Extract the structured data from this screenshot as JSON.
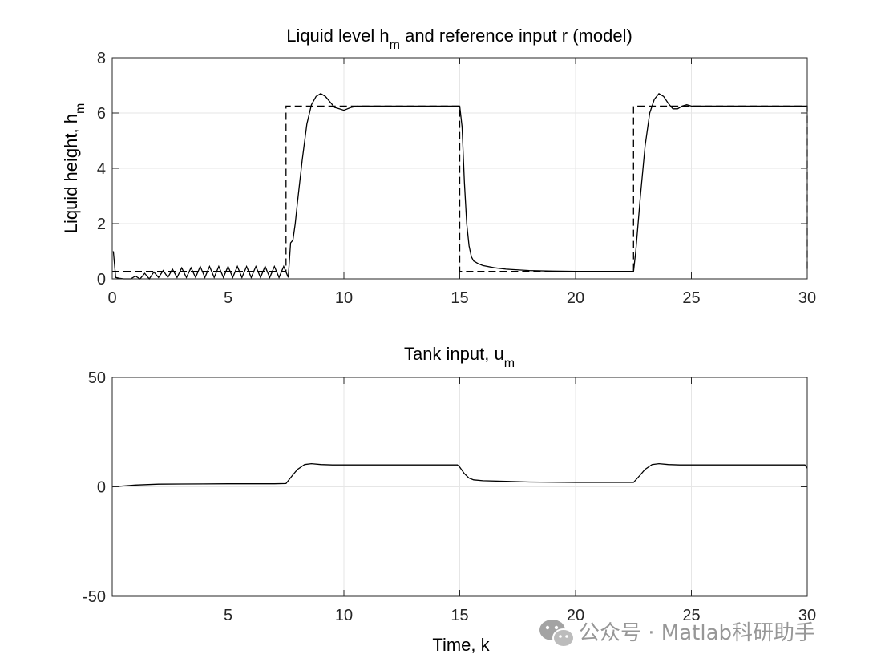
{
  "chart_data": [
    {
      "type": "line",
      "title": "Liquid level h",
      "title_sub": "m",
      "title_rest": " and reference input r (model)",
      "ylabel": "Liquid height, h",
      "ylabel_sub": "m",
      "xlabel": "",
      "xlim": [
        0,
        30
      ],
      "ylim": [
        0,
        8
      ],
      "xticks": [
        0,
        5,
        10,
        15,
        20,
        25,
        30
      ],
      "xticklabels": [
        "0",
        "5",
        "10",
        "15",
        "20",
        "25",
        "30"
      ],
      "yticks": [
        0,
        2,
        4,
        6,
        8
      ],
      "yticklabels": [
        "0",
        "2",
        "4",
        "6",
        "8"
      ],
      "grid": true,
      "series": [
        {
          "style": "solid",
          "x": [
            0.05,
            0.15,
            0.3,
            0.5,
            0.8,
            1.0,
            1.2,
            1.4,
            1.6,
            1.8,
            2.0,
            2.2,
            2.4,
            2.6,
            2.8,
            3.0,
            3.2,
            3.4,
            3.6,
            3.8,
            4.0,
            4.2,
            4.4,
            4.6,
            4.8,
            5.0,
            5.2,
            5.4,
            5.6,
            5.8,
            6.0,
            6.2,
            6.4,
            6.6,
            6.8,
            7.0,
            7.2,
            7.4,
            7.6,
            7.7,
            7.8,
            7.9,
            8.0,
            8.2,
            8.4,
            8.6,
            8.8,
            9.0,
            9.2,
            9.4,
            9.6,
            9.8,
            10.0,
            10.3,
            10.6,
            11.0,
            12.0,
            13.0,
            14.0,
            15.0,
            15.1,
            15.2,
            15.3,
            15.4,
            15.5,
            15.6,
            15.8,
            16.0,
            16.5,
            17.0,
            18.0,
            19.0,
            20.0,
            21.0,
            22.0,
            22.5,
            22.6,
            22.8,
            23.0,
            23.2,
            23.4,
            23.6,
            23.8,
            24.0,
            24.2,
            24.4,
            24.6,
            24.8,
            25.0,
            25.5,
            26.0,
            27.0,
            28.0,
            29.0,
            30.0
          ],
          "y": [
            1.0,
            0.05,
            0.02,
            0.0,
            0.0,
            0.1,
            0.0,
            0.2,
            0.0,
            0.25,
            0.05,
            0.3,
            0.05,
            0.35,
            0.05,
            0.4,
            0.05,
            0.4,
            0.05,
            0.45,
            0.05,
            0.45,
            0.05,
            0.45,
            0.05,
            0.45,
            0.05,
            0.45,
            0.05,
            0.45,
            0.05,
            0.45,
            0.05,
            0.45,
            0.05,
            0.45,
            0.05,
            0.45,
            0.05,
            1.3,
            1.4,
            2.0,
            2.8,
            4.3,
            5.6,
            6.3,
            6.6,
            6.7,
            6.6,
            6.4,
            6.2,
            6.15,
            6.1,
            6.2,
            6.25,
            6.25,
            6.25,
            6.25,
            6.25,
            6.25,
            5.5,
            3.5,
            2.0,
            1.2,
            0.8,
            0.65,
            0.55,
            0.48,
            0.4,
            0.35,
            0.3,
            0.28,
            0.27,
            0.27,
            0.27,
            0.27,
            1.0,
            3.0,
            4.8,
            6.0,
            6.5,
            6.7,
            6.6,
            6.35,
            6.15,
            6.15,
            6.25,
            6.3,
            6.25,
            6.25,
            6.25,
            6.25,
            6.25,
            6.25,
            6.25
          ]
        },
        {
          "style": "dashed",
          "x": [
            0.0,
            7.5,
            7.5,
            15.0,
            15.0,
            22.5,
            22.5,
            30.0,
            30.0
          ],
          "y": [
            0.27,
            0.27,
            6.25,
            6.25,
            0.27,
            0.27,
            6.25,
            6.25,
            0.27
          ]
        }
      ]
    },
    {
      "type": "line",
      "title": "Tank input, u",
      "title_sub": "m",
      "xlabel": "Time, k",
      "ylabel": "",
      "xlim": [
        0,
        30
      ],
      "ylim": [
        -50,
        50
      ],
      "xticks": [
        5,
        10,
        15,
        20,
        25,
        30
      ],
      "xticklabels": [
        "5",
        "10",
        "15",
        "20",
        "25",
        "30"
      ],
      "yticks": [
        -50,
        0,
        50
      ],
      "yticklabels": [
        "-50",
        "0",
        "50"
      ],
      "grid": true,
      "series": [
        {
          "style": "solid",
          "x": [
            0.0,
            0.5,
            1.0,
            2.0,
            3.0,
            5.0,
            7.0,
            7.5,
            7.8,
            8.0,
            8.3,
            8.6,
            9.0,
            9.5,
            10.0,
            12.0,
            14.0,
            14.9,
            15.0,
            15.2,
            15.4,
            15.6,
            16.0,
            17.0,
            18.0,
            20.0,
            22.0,
            22.5,
            22.8,
            23.0,
            23.3,
            23.6,
            24.0,
            24.5,
            25.0,
            27.0,
            29.0,
            29.9,
            30.0
          ],
          "y": [
            0.0,
            0.4,
            0.8,
            1.2,
            1.3,
            1.4,
            1.4,
            1.5,
            5.5,
            8.0,
            10.2,
            10.6,
            10.2,
            10.0,
            10.0,
            10.0,
            10.0,
            10.0,
            9.0,
            6.0,
            4.0,
            3.2,
            2.8,
            2.5,
            2.2,
            2.0,
            2.0,
            2.0,
            5.5,
            8.0,
            10.2,
            10.6,
            10.2,
            10.0,
            10.0,
            10.0,
            10.0,
            10.0,
            8.5
          ]
        }
      ]
    }
  ],
  "watermark": {
    "icon": "wechat-icon",
    "text": "公众号 · Matlab科研助手"
  }
}
